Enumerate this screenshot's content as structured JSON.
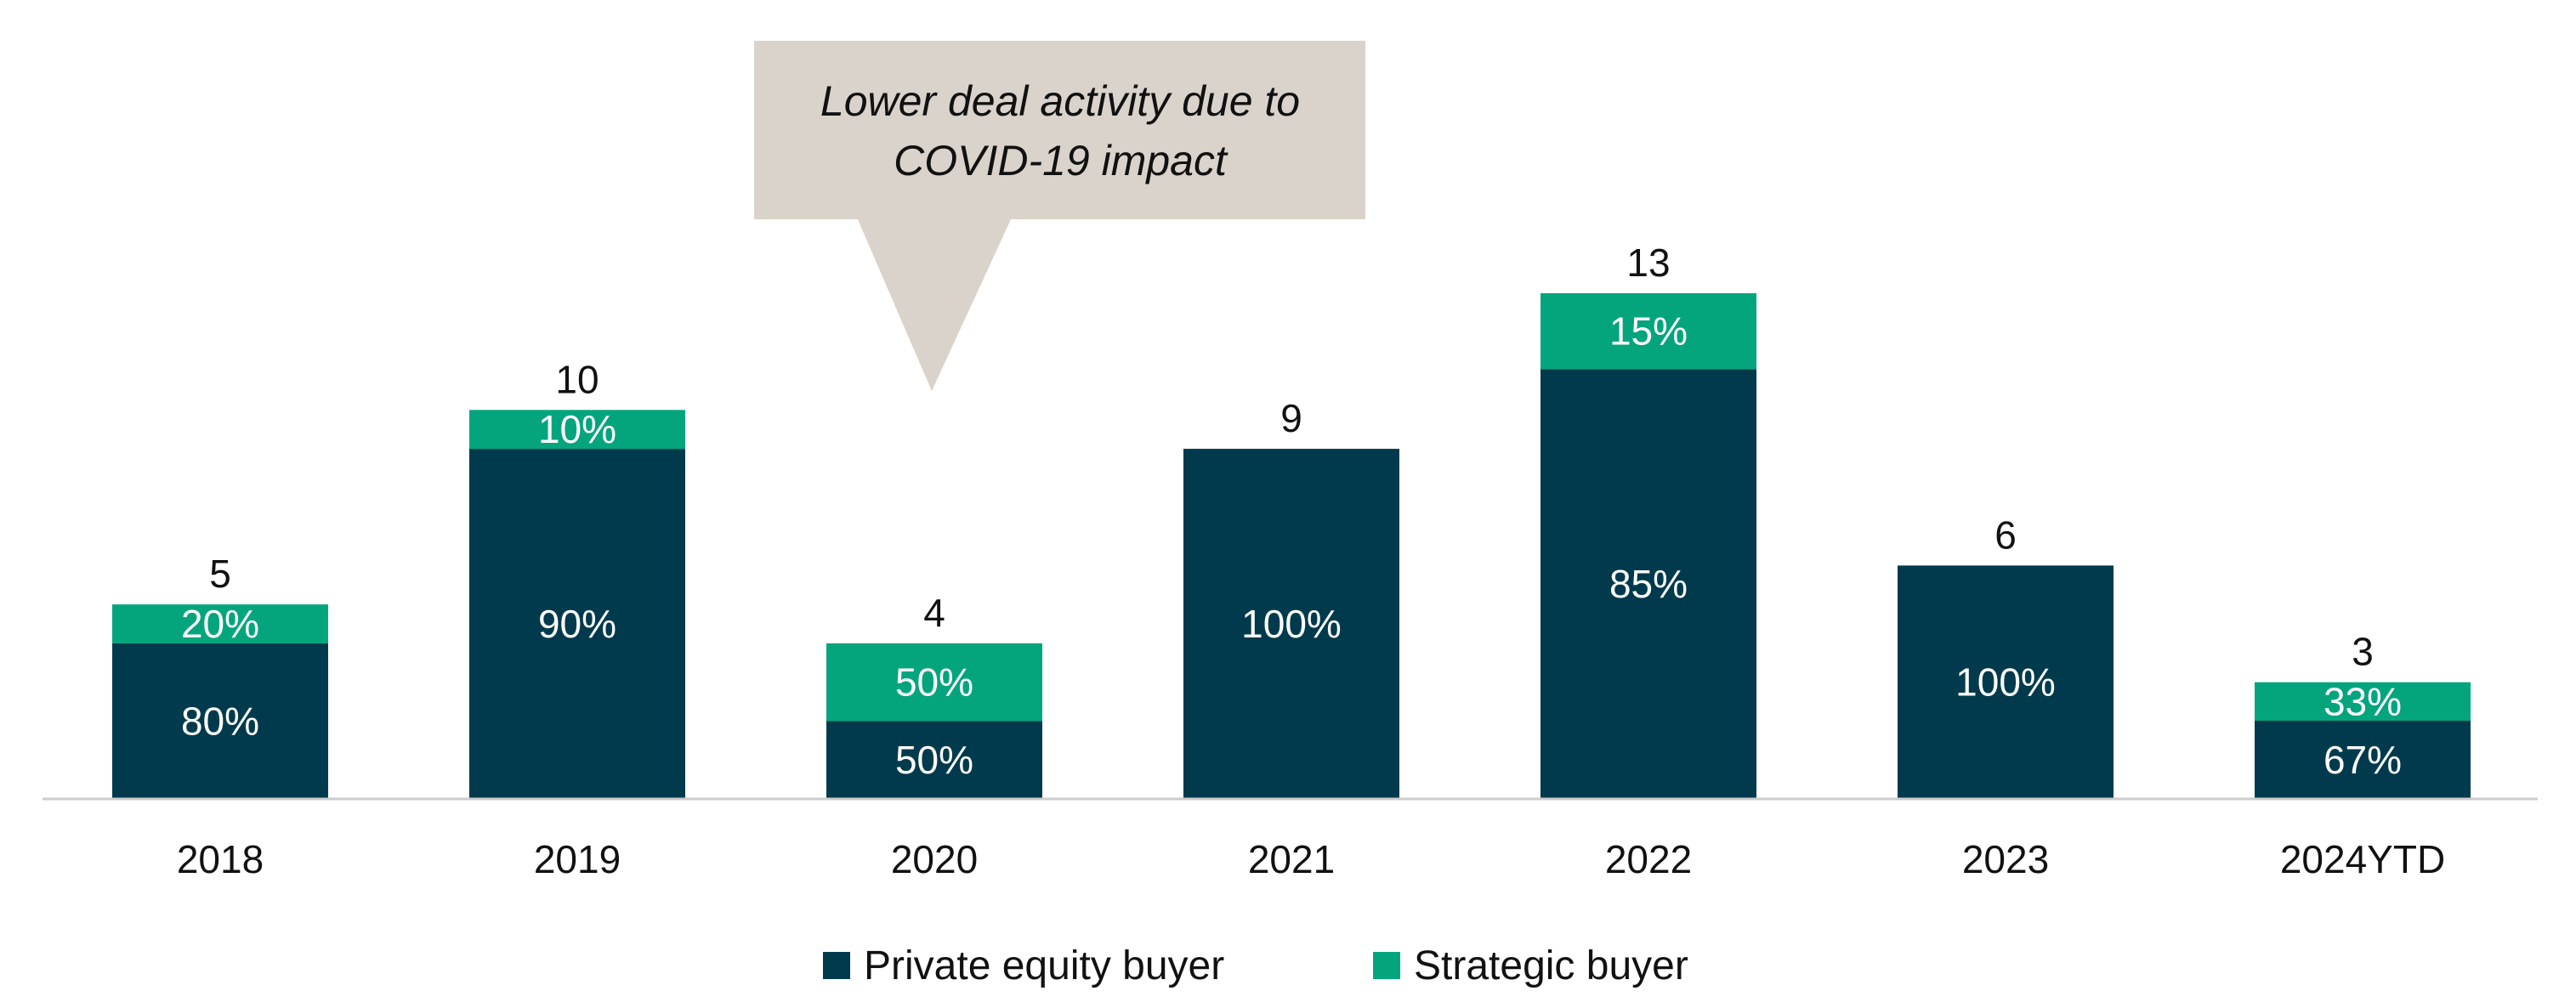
{
  "chart_data": {
    "type": "bar",
    "stacked": true,
    "categories": [
      "2018",
      "2019",
      "2020",
      "2021",
      "2022",
      "2023",
      "2024YTD"
    ],
    "totals": [
      5,
      10,
      4,
      9,
      13,
      6,
      3
    ],
    "series": [
      {
        "name": "Private equity buyer",
        "color": "#013a4c",
        "percent_labels": [
          "80%",
          "90%",
          "50%",
          "100%",
          "85%",
          "100%",
          "67%"
        ],
        "shares": [
          0.8,
          0.9,
          0.5,
          1.0,
          0.85,
          1.0,
          0.67
        ]
      },
      {
        "name": "Strategic buyer",
        "color": "#04a57d",
        "percent_labels": [
          "20%",
          "10%",
          "50%",
          "",
          "15%",
          "",
          "33%"
        ],
        "shares": [
          0.2,
          0.1,
          0.5,
          0.0,
          0.15,
          0.0,
          0.33
        ]
      }
    ],
    "ylim": [
      0,
      13
    ],
    "grid": false,
    "legend_position": "bottom",
    "annotation": {
      "text_lines": [
        "Lower deal activity due to",
        "COVID-19 impact"
      ],
      "category": "2020",
      "color": "#d9d3cb"
    }
  }
}
